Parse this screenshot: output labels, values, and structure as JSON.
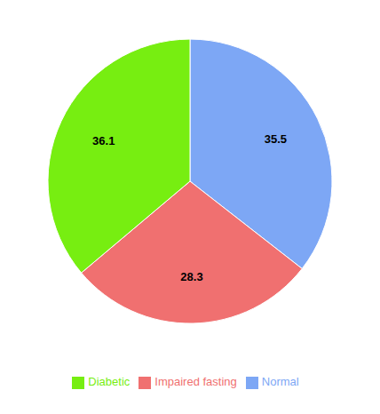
{
  "chart_data": {
    "type": "pie",
    "categories": [
      "Normal",
      "Impaired fasting",
      "Diabetic"
    ],
    "values": [
      35.5,
      28.3,
      36.1
    ],
    "colors": [
      "#7da7f5",
      "#f07070",
      "#77ee11"
    ],
    "data_labels": true,
    "legend": "lower center"
  }
}
